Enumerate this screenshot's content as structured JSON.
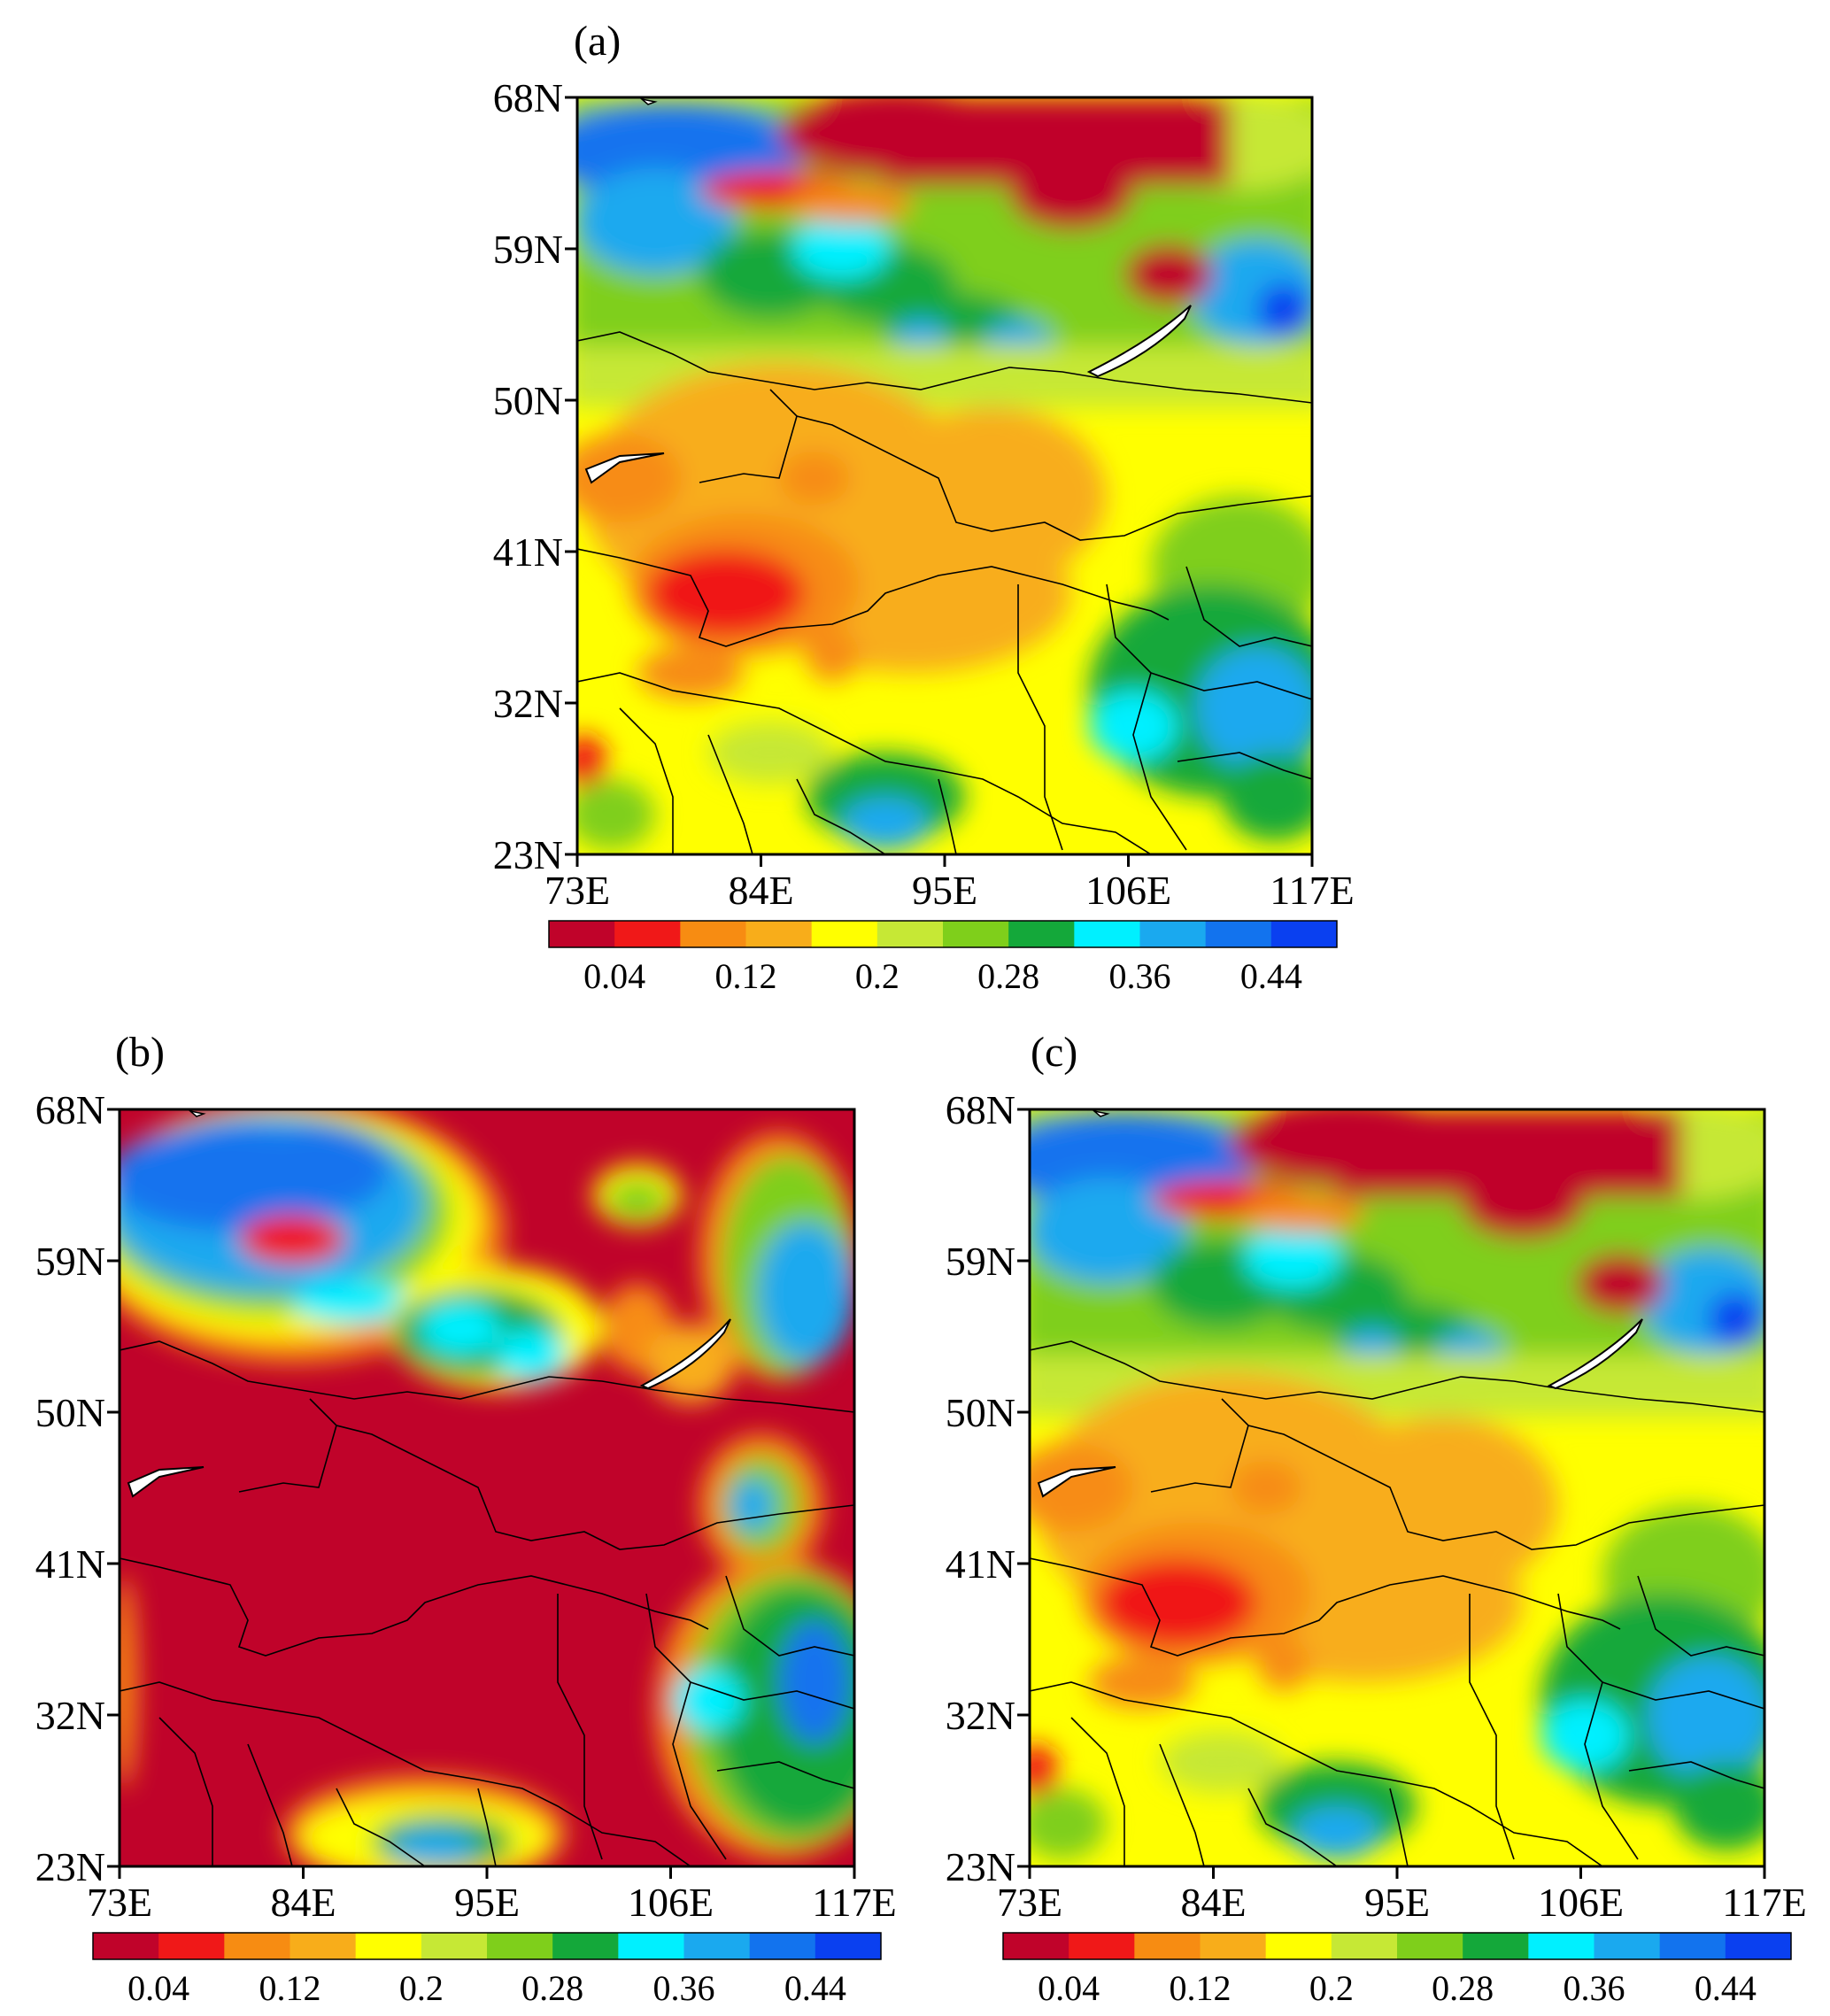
{
  "panels": [
    {
      "id": "a",
      "label": "(a)",
      "y_ticks": [
        "68N",
        "59N",
        "50N",
        "41N",
        "32N",
        "23N"
      ],
      "x_ticks": [
        "73E",
        "84E",
        "95E",
        "106E",
        "117E"
      ],
      "colorbar_labels": [
        "0.04",
        "0.12",
        "0.2",
        "0.28",
        "0.36",
        "0.44"
      ]
    },
    {
      "id": "b",
      "label": "(b)",
      "y_ticks": [
        "68N",
        "59N",
        "50N",
        "41N",
        "32N",
        "23N"
      ],
      "x_ticks": [
        "73E",
        "84E",
        "95E",
        "106E",
        "117E"
      ],
      "colorbar_labels": [
        "0.04",
        "0.12",
        "0.2",
        "0.28",
        "0.36",
        "0.44"
      ]
    },
    {
      "id": "c",
      "label": "(c)",
      "y_ticks": [
        "68N",
        "59N",
        "50N",
        "41N",
        "32N",
        "23N"
      ],
      "x_ticks": [
        "73E",
        "84E",
        "95E",
        "106E",
        "117E"
      ],
      "colorbar_labels": [
        "0.04",
        "0.12",
        "0.2",
        "0.28",
        "0.36",
        "0.44"
      ]
    }
  ],
  "colorbar": {
    "colors": [
      "#c0032a",
      "#f01818",
      "#f78c12",
      "#f8ad1a",
      "#ffff00",
      "#c6e835",
      "#7fcf1b",
      "#14a83a",
      "#00f0ff",
      "#1aa9ef",
      "#1273ee",
      "#0a40f0"
    ]
  }
}
